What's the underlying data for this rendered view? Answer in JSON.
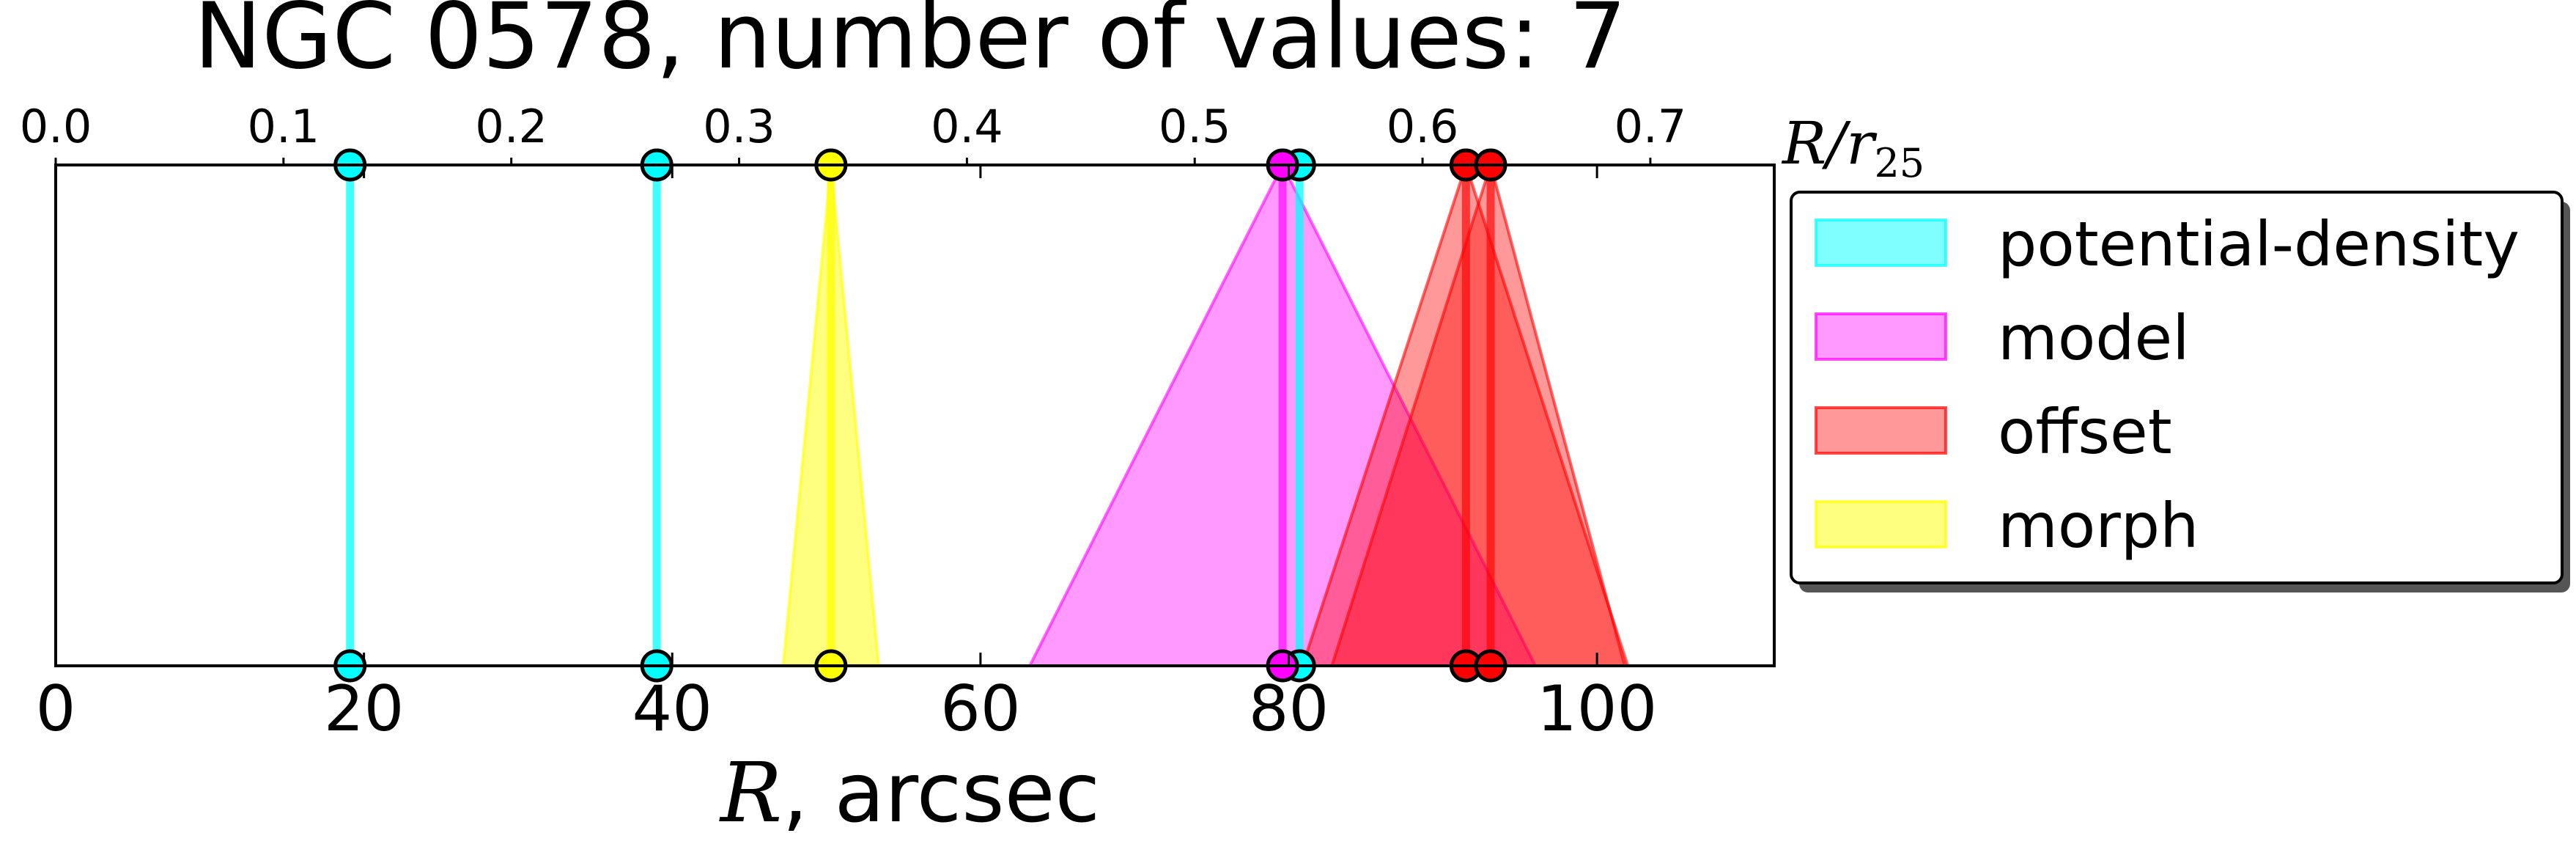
{
  "chart_data": {
    "type": "line",
    "title": "NGC 0578, number of values: 7",
    "xlabel": "R, arcsec",
    "xlabel_symbol": "R",
    "xlabel_unit": ", arcsec",
    "x2label": "R/r25",
    "x2label_main": "R/r",
    "x2label_sub": "25",
    "xlim": [
      0,
      111.5
    ],
    "x_ticks": [
      0,
      20,
      40,
      60,
      80,
      100
    ],
    "x_tick_labels": [
      "0",
      "20",
      "40",
      "60",
      "80",
      "100"
    ],
    "x2_ticks": [
      0.0,
      0.1,
      0.2,
      0.3,
      0.4,
      0.5,
      0.6,
      0.7
    ],
    "x2_tick_labels": [
      "0.0",
      "0.1",
      "0.2",
      "0.3",
      "0.4",
      "0.5",
      "0.6",
      "0.7"
    ],
    "arcsec_per_r25": 147.8,
    "grid": false,
    "legend_position": "outside-right",
    "series": [
      {
        "name": "potential-density",
        "color": "#00ffff",
        "alpha": 0.5,
        "markers": [
          {
            "x": 19.1,
            "low": 19.1,
            "high": 19.1
          },
          {
            "x": 39.0,
            "low": 39.0,
            "high": 39.0
          },
          {
            "x": 80.7,
            "low": 80.7,
            "high": 80.7
          }
        ]
      },
      {
        "name": "model",
        "color": "#ff00ff",
        "alpha": 0.4,
        "markers": [
          {
            "x": 79.6,
            "low": 63.2,
            "high": 96.0
          }
        ]
      },
      {
        "name": "offset",
        "color": "#ff0000",
        "alpha": 0.4,
        "markers": [
          {
            "x": 91.5,
            "low": 80.9,
            "high": 102.0
          },
          {
            "x": 93.1,
            "low": 82.8,
            "high": 101.8
          }
        ]
      },
      {
        "name": "morph",
        "color": "#ffff00",
        "alpha": 0.5,
        "markers": [
          {
            "x": 50.3,
            "low": 47.2,
            "high": 53.4
          }
        ]
      }
    ]
  }
}
